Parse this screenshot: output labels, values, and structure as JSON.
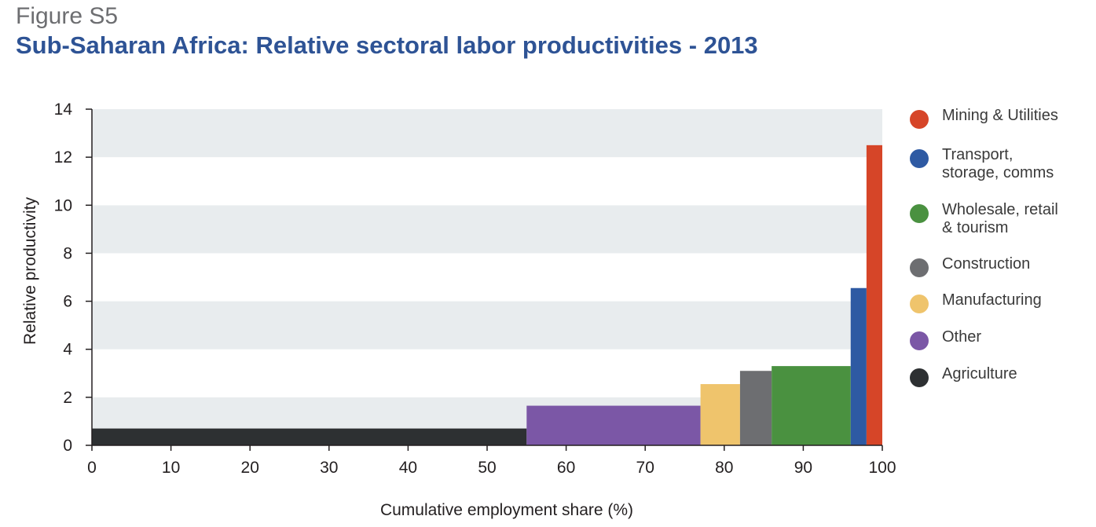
{
  "figure_label": "Figure S5",
  "title": "Sub-Saharan Africa: Relative sectoral labor productivities - 2013",
  "chart_data": {
    "type": "bar",
    "xlabel": "Cumulative employment share (%)",
    "ylabel": "Relative productivity",
    "xlim": [
      0,
      100
    ],
    "ylim": [
      0,
      14
    ],
    "xticks": [
      0,
      10,
      20,
      30,
      40,
      50,
      60,
      70,
      80,
      90,
      100
    ],
    "yticks": [
      0,
      2,
      4,
      6,
      8,
      10,
      12,
      14
    ],
    "grid": "alternating horizontal bands",
    "legend_position": "right",
    "sectors": [
      {
        "name": "Agriculture",
        "x_start": 0,
        "x_end": 55,
        "value": 0.7,
        "color": "#2d3032"
      },
      {
        "name": "Other",
        "x_start": 55,
        "x_end": 77,
        "value": 1.65,
        "color": "#7b57a6"
      },
      {
        "name": "Manufacturing",
        "x_start": 77,
        "x_end": 82,
        "value": 2.55,
        "color": "#efc46c"
      },
      {
        "name": "Construction",
        "x_start": 82,
        "x_end": 86,
        "value": 3.1,
        "color": "#6d6e71"
      },
      {
        "name": "Wholesale, retail & tourism",
        "x_start": 86,
        "x_end": 96,
        "value": 3.3,
        "color": "#4a9140"
      },
      {
        "name": "Transport, storage, comms",
        "x_start": 96,
        "x_end": 98,
        "value": 6.55,
        "color": "#2e5aa3"
      },
      {
        "name": "Mining & Utilities",
        "x_start": 98,
        "x_end": 100,
        "value": 12.5,
        "color": "#d64528"
      }
    ]
  },
  "legend": [
    {
      "label": "Mining & Utilities",
      "color": "#d64528"
    },
    {
      "label": "Transport, storage, comms",
      "color": "#2e5aa3"
    },
    {
      "label": "Wholesale, retail & tourism",
      "color": "#4a9140"
    },
    {
      "label": "Construction",
      "color": "#6d6e71"
    },
    {
      "label": "Manufacturing",
      "color": "#efc46c"
    },
    {
      "label": "Other",
      "color": "#7b57a6"
    },
    {
      "label": "Agriculture",
      "color": "#2d3032"
    }
  ]
}
